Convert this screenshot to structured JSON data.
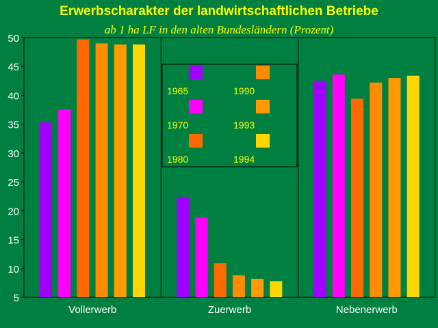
{
  "chart_data": {
    "type": "bar",
    "title": "Erwerbscharakter der landwirtschaftlichen Betriebe",
    "subtitle": "ab 1 ha LF in den alten Bundesländern (Prozent)",
    "categories": [
      "Vollerwerb",
      "Zuerwerb",
      "Nebenerwerb"
    ],
    "ylim": [
      5,
      50
    ],
    "yticks": [
      5,
      10,
      15,
      20,
      25,
      30,
      35,
      40,
      45,
      50
    ],
    "grid": false,
    "legend_position": "top-center",
    "series": [
      {
        "name": "1965",
        "color": "#a000ff",
        "values": [
          35.3,
          22.3,
          42.5
        ]
      },
      {
        "name": "1970",
        "color": "#ff00ff",
        "values": [
          37.5,
          18.8,
          43.6
        ]
      },
      {
        "name": "1980",
        "color": "#ff6a00",
        "values": [
          49.7,
          10.9,
          39.4
        ]
      },
      {
        "name": "1990",
        "color": "#ff8c00",
        "values": [
          49.0,
          8.8,
          42.2
        ]
      },
      {
        "name": "1993",
        "color": "#ff9a00",
        "values": [
          48.8,
          8.2,
          43.0
        ]
      },
      {
        "name": "1994",
        "color": "#ffd700",
        "values": [
          48.8,
          7.8,
          43.4
        ]
      }
    ]
  },
  "colors": {
    "background": "#008040",
    "plot_border": "#000000",
    "title": "#ffff00",
    "axis_text": "#ffffff"
  }
}
